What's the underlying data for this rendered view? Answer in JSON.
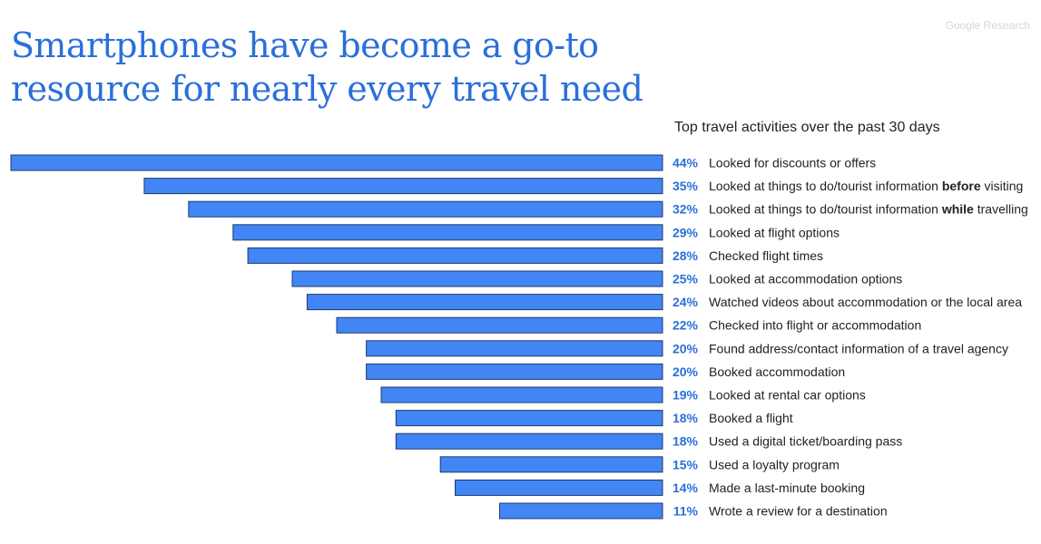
{
  "header": {
    "title_line1": "Smartphones have become a go-to",
    "title_line2": "resource for nearly every travel need",
    "source": "Google Research",
    "subtitle": "Top travel activities over the past 30 days"
  },
  "colors": {
    "bar_fill": "#4285f4",
    "bar_stroke": "#1f3a6e",
    "title": "#2a6fdb",
    "percent_text": "#2a6fdb"
  },
  "chart_data": {
    "type": "bar",
    "orientation": "horizontal",
    "title": "Smartphones have become a go-to resource for nearly every travel need",
    "subtitle": "Top travel activities over the past 30 days",
    "unit": "%",
    "xlim": [
      0,
      44
    ],
    "grid": false,
    "legend": "none",
    "categories": [
      {
        "text": "Looked for discounts or offers"
      },
      {
        "pre": "Looked at things to do/tourist information ",
        "em": "before",
        "post": " visiting"
      },
      {
        "pre": "Looked at things to do/tourist information ",
        "em": "while",
        "post": " travelling"
      },
      {
        "text": "Looked at flight options"
      },
      {
        "text": "Checked flight times"
      },
      {
        "text": "Looked at accommodation options"
      },
      {
        "text": "Watched videos about accommodation or the local area"
      },
      {
        "text": "Checked into flight or accommodation"
      },
      {
        "text": "Found address/contact information of a travel agency"
      },
      {
        "text": "Booked accommodation"
      },
      {
        "text": "Looked at rental car options"
      },
      {
        "text": "Booked a flight"
      },
      {
        "text": "Used a digital ticket/boarding pass"
      },
      {
        "text": "Used a loyalty program"
      },
      {
        "text": "Made a last-minute booking"
      },
      {
        "text": "Wrote a review for a destination"
      }
    ],
    "values": [
      44,
      35,
      32,
      29,
      28,
      25,
      24,
      22,
      20,
      20,
      19,
      18,
      18,
      15,
      14,
      11
    ]
  }
}
